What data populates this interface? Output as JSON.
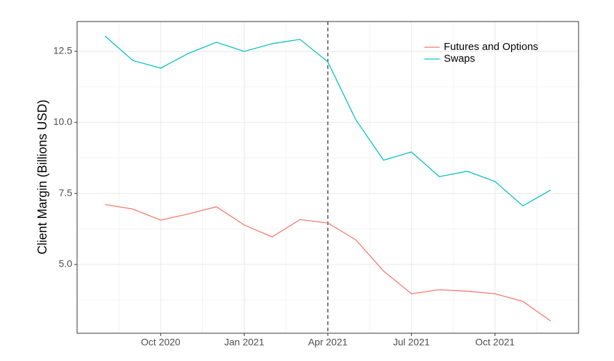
{
  "chart_data": {
    "type": "line",
    "y_label": "Client Margin (Billions USD)",
    "x": [
      "2020-08",
      "2020-09",
      "2020-10",
      "2020-11",
      "2020-12",
      "2021-01",
      "2021-02",
      "2021-03",
      "2021-04",
      "2021-05",
      "2021-06",
      "2021-07",
      "2021-08",
      "2021-09",
      "2021-10",
      "2021-11",
      "2021-12"
    ],
    "series": [
      {
        "name": "Futures and Options",
        "color": "#F8766D",
        "values": [
          7.11,
          6.95,
          6.56,
          6.78,
          7.03,
          6.39,
          5.97,
          6.58,
          6.46,
          5.87,
          4.77,
          3.97,
          4.11,
          4.06,
          3.97,
          3.7,
          3.01
        ]
      },
      {
        "name": "Swaps",
        "color": "#00BFC4",
        "values": [
          13.04,
          12.18,
          11.91,
          12.43,
          12.82,
          12.5,
          12.77,
          12.92,
          12.13,
          10.1,
          8.67,
          8.96,
          8.09,
          8.28,
          7.92,
          7.06,
          7.62
        ]
      }
    ],
    "xlim": [
      "2020-07",
      "2022-01"
    ],
    "xticks": [
      {
        "value": "2020-10",
        "label": "Oct 2020"
      },
      {
        "value": "2021-01",
        "label": "Jan 2021"
      },
      {
        "value": "2021-04",
        "label": "Apr 2021"
      },
      {
        "value": "2021-07",
        "label": "Jul 2021"
      },
      {
        "value": "2021-10",
        "label": "Oct 2021"
      }
    ],
    "ylim": [
      2.58,
      13.55
    ],
    "yticks": [
      {
        "value": 5,
        "label": "5.0"
      },
      7.5,
      {
        "value": 10,
        "label": "10.0"
      },
      12.5
    ],
    "vline": "2021-04",
    "grid": true,
    "legend": "top-right"
  }
}
